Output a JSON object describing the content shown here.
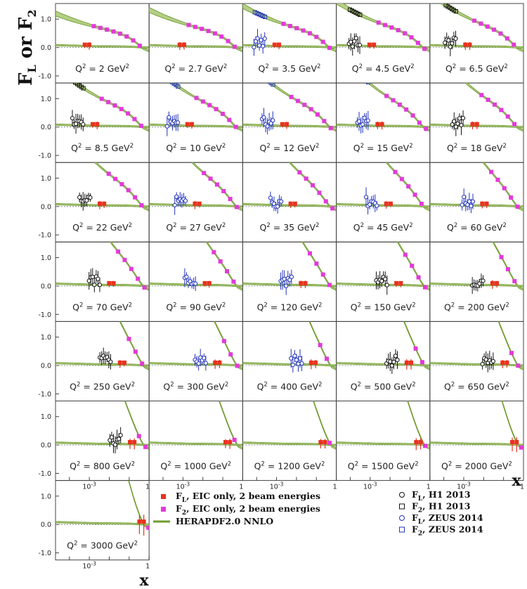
{
  "chart_data": {
    "type": "scatter",
    "ylabel": {
      "main": "F",
      "sub1": "L",
      "mid": " or F",
      "sub2": "2"
    },
    "xlabel": "x",
    "x_scale": "log",
    "x_tick_labels": [
      {
        "base": "10",
        "exp": "-3",
        "value": 0.001
      },
      {
        "text": "1",
        "value": 1
      }
    ],
    "y_ticks": [
      "1.0",
      "0.0",
      "-1.0"
    ],
    "y_tick_values": [
      1.0,
      0.0,
      -1.0
    ],
    "ylim": [
      -1.25,
      1.55
    ],
    "xlim": [
      2e-05,
      1
    ],
    "panel_label_template": {
      "prefix": "Q",
      "sup": "2",
      "suffix": " GeV",
      "unit_sup": "2"
    },
    "q2_values": [
      "2",
      "2.7",
      "3.5",
      "4.5",
      "6.5",
      "8.5",
      "10",
      "12",
      "15",
      "18",
      "22",
      "27",
      "35",
      "45",
      "60",
      "70",
      "90",
      "120",
      "150",
      "200",
      "250",
      "300",
      "400",
      "500",
      "650",
      "800",
      "1000",
      "1200",
      "1500",
      "2000",
      "3000"
    ],
    "colors": {
      "eic_fl": "#e8321e",
      "eic_f2": "#e23ad8",
      "herapdf": "#6f9a2e",
      "herapdf_band": "#b4cf86",
      "h1": "#111111",
      "zeus": "#2233bb"
    },
    "legend_left": [
      {
        "marker": "square-red",
        "main": "F",
        "sub": "L",
        "rest": ", EIC only, 2 beam energies"
      },
      {
        "marker": "square-magenta",
        "main": "F",
        "sub": "2",
        "rest": ", EIC only, 2 beam energies"
      },
      {
        "marker": "line-green",
        "main": "HERAPDF2.0 NNLO",
        "sub": "",
        "rest": ""
      }
    ],
    "legend_right": [
      {
        "marker": "circle-black",
        "main": "F",
        "sub": "L",
        "rest": ", H1 2013"
      },
      {
        "marker": "square-open-black",
        "main": "F",
        "sub": "2",
        "rest": ", H1 2013"
      },
      {
        "marker": "circle-blue",
        "main": "F",
        "sub": "L",
        "rest": ", ZEUS 2014"
      },
      {
        "marker": "square-open-blue",
        "main": "F",
        "sub": "2",
        "rest": ", ZEUS 2014"
      }
    ]
  }
}
